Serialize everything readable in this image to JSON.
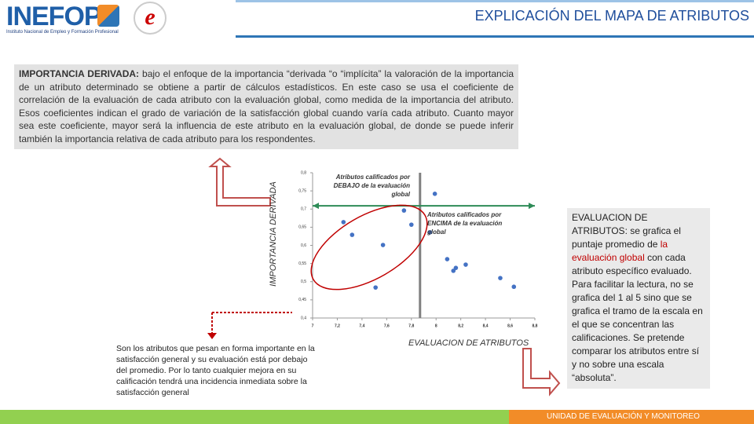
{
  "header": {
    "logo": "INEFOP",
    "logo_subtitle": "Instituto Nacional de Empleo y Formación Profesional",
    "title": "EXPLICACIÓN DEL MAPA DE ATRIBUTOS"
  },
  "intro": {
    "lead": "IMPORTANCIA DERIVADA:",
    "text": "bajo el enfoque de la importancia “derivada “o “implícita” la valoración de la importancia de un atributo determinado se obtiene a partir de cálculos estadísticos. En este caso se usa el coeficiente de correlación de la evaluación de cada atributo con la evaluación global, como medida de la importancia del atributo. Esos coeficientes indican el grado de variación de la satisfacción global cuando varía cada atributo. Cuanto mayor sea este coeficiente, mayor será la influencia de este atributo en la evaluación global, de donde se puede inferir también la importancia relativa de cada atributo para los respondentes."
  },
  "chart": {
    "type": "scatter",
    "y_label": "IMPORTANCIA DERIVADA",
    "x_label": "EVALUACION DE ATRIBUTOS",
    "xlim": [
      7,
      8.8
    ],
    "ylim": [
      0.4,
      0.8
    ],
    "xticks": [
      7,
      {
        "value": 7.2,
        "label": "7,2"
      },
      {
        "value": 7.4,
        "label": "7,4"
      },
      {
        "value": 7.6,
        "label": "7,6"
      },
      {
        "value": 7.8,
        "label": "7,8"
      },
      8,
      {
        "value": 8.2,
        "label": "8,2"
      },
      {
        "value": 8.4,
        "label": "8,4"
      },
      {
        "value": 8.6,
        "label": "8,6"
      },
      {
        "value": 8.8,
        "label": "8,8"
      }
    ],
    "yticks": [
      {
        "value": 0.4,
        "label": "0,4"
      },
      {
        "value": 0.45,
        "label": "0,45"
      },
      {
        "value": 0.5,
        "label": "0,5"
      },
      {
        "value": 0.55,
        "label": "0,55"
      },
      {
        "value": 0.6,
        "label": "0,6"
      },
      {
        "value": 0.65,
        "label": "0,65"
      },
      {
        "value": 0.7,
        "label": "0,7"
      },
      {
        "value": 0.75,
        "label": "0,75"
      },
      {
        "value": 0.8,
        "label": "0,8"
      }
    ],
    "x": [
      7.99,
      7.74,
      7.8,
      7.25,
      7.32,
      7.57,
      7.95,
      8.09,
      8.16,
      8.14,
      8.24,
      8.52,
      8.63,
      7.51
    ],
    "y": [
      0.742,
      0.696,
      0.657,
      0.664,
      0.629,
      0.601,
      0.636,
      0.562,
      0.538,
      0.53,
      0.547,
      0.51,
      0.486,
      0.484
    ],
    "color": "#4472c4",
    "x_mean": 7.87,
    "y_mean": 0.709,
    "note_below": "Atributos calificados por DEBAJO de la evaluación global",
    "note_above": "Atributos calificados por ENCIMA de la evaluación global"
  },
  "bottom_text": "Son los atributos que pesan en forma importante en la satisfacción general y su evaluación está por debajo del promedio. Por lo tanto cualquier mejora en su calificación tendrá una incidencia inmediata sobre la satisfacción general",
  "right_box": {
    "lead": "EVALUACION DE ATRIBUTOS:",
    "text_1": "se grafica el puntaje promedio de",
    "highlight": "la evaluación global",
    "text_2": "con cada atributo específico evaluado. Para facilitar la lectura, no se grafica del 1 al 5 sino que se grafica el tramo de la escala en el que se concentran las calificaciones. Se pretende comparar los atributos entre sí y no sobre una escala “absoluta”."
  },
  "footer": "UNIDAD DE EVALUACIÓN Y MONITOREO"
}
